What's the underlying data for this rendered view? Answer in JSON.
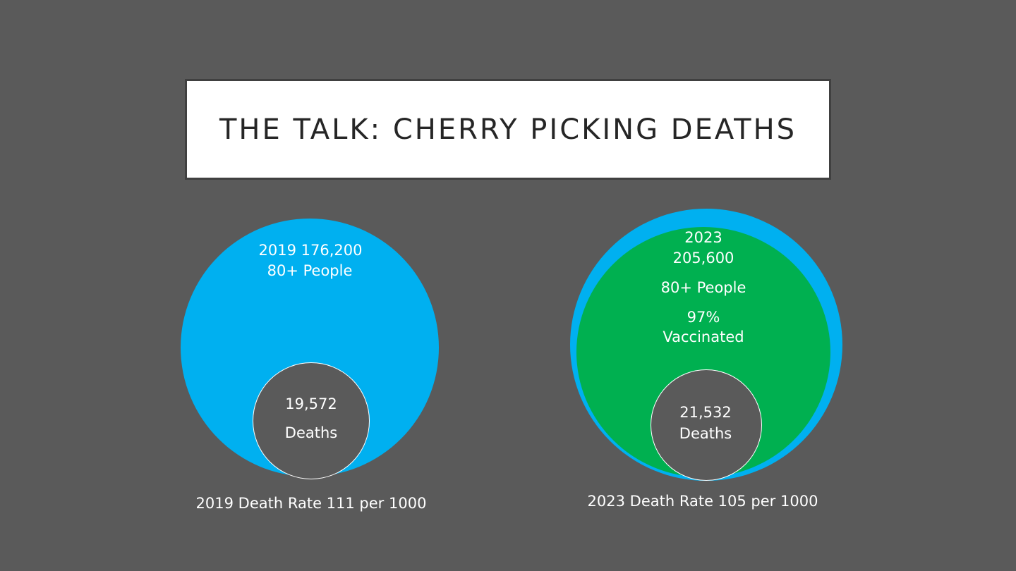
{
  "title": "THE TALK: CHERRY PICKING DEATHS",
  "colors": {
    "background": "#5a5a5a",
    "population_blue": "#00b0f0",
    "vaccinated_green": "#00b050",
    "deaths_grey": "#5a5a5a",
    "text_white": "#ffffff"
  },
  "left": {
    "pop_line1": "2019 176,200",
    "pop_line2": "80+ People",
    "deaths_value": "19,572",
    "deaths_label": "Deaths",
    "caption": "2019 Death Rate 111 per 1000"
  },
  "right": {
    "year": "2023",
    "population": "205,600",
    "group": "80+ People",
    "vacc_pct": "97%",
    "vacc_label": "Vaccinated",
    "deaths_value": "21,532",
    "deaths_label": "Deaths",
    "caption": "2023 Death Rate 105 per 1000"
  }
}
